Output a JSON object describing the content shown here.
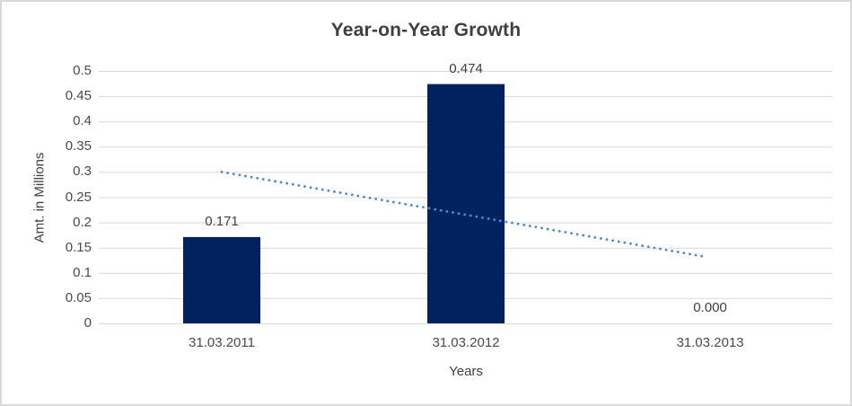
{
  "chart_data": {
    "type": "bar",
    "title": "Year-on-Year Growth",
    "xlabel": "Years",
    "ylabel": "Amt. in Millions",
    "categories": [
      "31.03.2011",
      "31.03.2012",
      "31.03.2013"
    ],
    "values": [
      0.171,
      0.474,
      0.0
    ],
    "value_labels": [
      "0.171",
      "0.474",
      "0.000"
    ],
    "ylim": [
      0,
      0.5
    ],
    "ytick_step": 0.05,
    "y_ticks": [
      "0",
      "0.05",
      "0.1",
      "0.15",
      "0.2",
      "0.25",
      "0.3",
      "0.35",
      "0.4",
      "0.45",
      "0.5"
    ],
    "grid": true,
    "legend": "none",
    "trendline": {
      "style": "dotted",
      "points": [
        {
          "category_index": 0,
          "value": 0.3
        },
        {
          "category_index": 2,
          "value": 0.13
        }
      ]
    },
    "colors": {
      "bar": "#02215F",
      "trendline": "#5089C6",
      "gridline": "#D9D9D9",
      "title_text": "#3F3F3F",
      "axis_text": "#4A4A4A"
    }
  }
}
